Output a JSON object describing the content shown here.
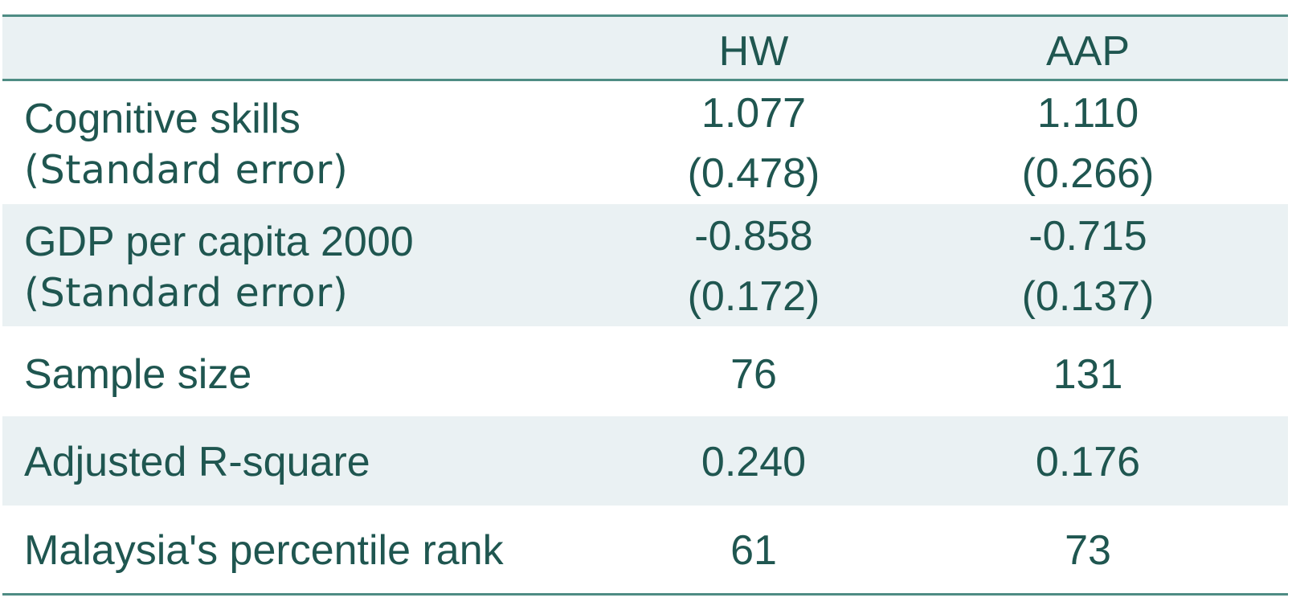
{
  "table": {
    "columns": [
      "",
      "HW",
      "AAP"
    ],
    "rows": [
      {
        "label": "Cognitive skills",
        "hw": "1.077",
        "aap": "1.110",
        "se_label": "(Standard error)",
        "hw_se": "(0.478)",
        "aap_se": "(0.266)"
      },
      {
        "label": "GDP per capita 2000",
        "hw": "-0.858",
        "aap": "-0.715",
        "se_label": "(Standard error)",
        "hw_se": "(0.172)",
        "aap_se": "(0.137)"
      },
      {
        "label": "Sample size",
        "hw": "76",
        "aap": "131"
      },
      {
        "label": "Adjusted R-square",
        "hw": "0.240",
        "aap": "0.176"
      },
      {
        "label": "Malaysia's percentile rank",
        "hw": "61",
        "aap": "73"
      }
    ]
  },
  "colors": {
    "text": "#1f5650",
    "rule": "#4e8c84",
    "shade": "#eaf1f3"
  }
}
